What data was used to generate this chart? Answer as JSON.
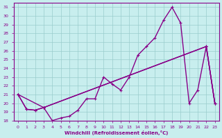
{
  "xlabel": "Windchill (Refroidissement éolien,°C)",
  "xlim": [
    -0.5,
    23.5
  ],
  "ylim": [
    18,
    31.5
  ],
  "xticks": [
    0,
    1,
    2,
    3,
    4,
    5,
    6,
    7,
    8,
    9,
    10,
    11,
    12,
    13,
    14,
    15,
    16,
    17,
    18,
    19,
    20,
    21,
    22,
    23
  ],
  "yticks": [
    18,
    19,
    20,
    21,
    22,
    23,
    24,
    25,
    26,
    27,
    28,
    29,
    30,
    31
  ],
  "bg_color": "#c8eeee",
  "grid_color": "#99cccc",
  "line_color": "#880088",
  "line1_x": [
    0,
    1,
    2,
    3,
    4,
    5,
    6,
    7,
    8,
    9,
    10,
    11,
    12,
    13,
    14,
    15,
    16,
    17,
    18,
    19,
    20,
    21,
    22,
    23
  ],
  "line1_y": [
    21.0,
    19.3,
    19.2,
    19.5,
    18.0,
    18.3,
    18.5,
    19.2,
    20.5,
    20.5,
    23.0,
    22.2,
    21.5,
    23.0,
    25.5,
    26.5,
    27.5,
    29.5,
    31.0,
    29.2,
    20.0,
    21.5,
    26.5,
    20.0
  ],
  "line2_x": [
    0,
    1,
    2,
    3,
    22,
    23
  ],
  "line2_y": [
    21.0,
    19.3,
    19.2,
    19.5,
    26.5,
    20.0
  ],
  "line3_x": [
    0,
    3,
    22,
    23
  ],
  "line3_y": [
    21.0,
    19.5,
    26.5,
    20.0
  ],
  "marker": "+",
  "marker_size": 3.5,
  "linewidth": 1.0
}
